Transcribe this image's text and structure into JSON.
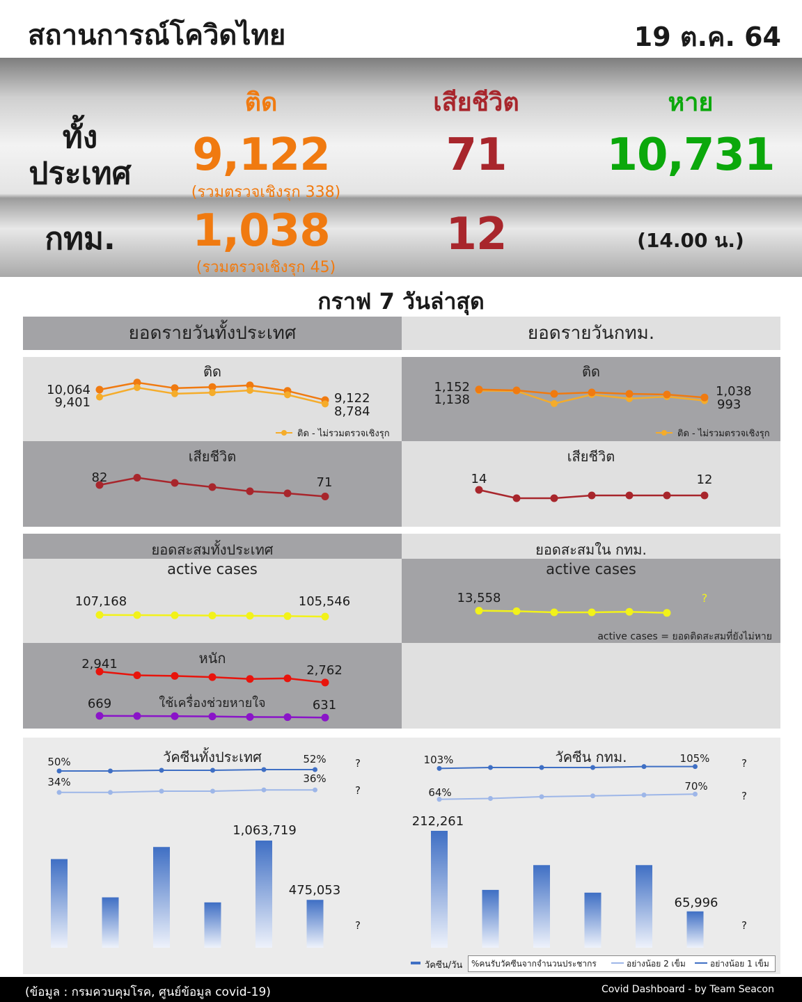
{
  "header": {
    "title": "สถานการณ์โควิดไทย",
    "date": "19 ต.ค. 64"
  },
  "stats": {
    "col_infected": "ติด",
    "col_deaths": "เสียชีวิต",
    "col_recovered": "หาย",
    "row_country": "ทั้ง\nประเทศ",
    "row_bkk": "กทม.",
    "country_infected": "9,122",
    "country_infected_note": "(รวมตรวจเชิงรุก 338)",
    "country_deaths": "71",
    "country_recovered": "10,731",
    "bkk_infected": "1,038",
    "bkk_infected_note": "(รวมตรวจเชิงรุก 45)",
    "bkk_deaths": "12",
    "bkk_time": "(14.00 น.)"
  },
  "section_title": "กราฟ 7 วันล่าสุด",
  "panels": {
    "daily_country": "ยอดรายวันทั้งประเทศ",
    "daily_bkk": "ยอดรายวันกทม.",
    "infected": "ติด",
    "deaths": "เสียชีวิต",
    "legend_no_active": "ติด - ไม่รวมตรวจเชิงรุก",
    "cum_country": "ยอดสะสมทั้งประเทศ",
    "cum_bkk": "ยอดสะสมใน กทม.",
    "active": "active cases",
    "severe": "หนัก",
    "ventilator": "ใช้เครื่องช่วยหายใจ",
    "active_note": "active cases = ยอดติดสะสมที่ยังไม่หาย",
    "vacc_country": "วัคซีนทั้งประเทศ",
    "vacc_bkk": "วัคซีน กทม.",
    "legend_daily": "วัคซีน/วัน",
    "legend_pct": "%คนรับวัคซีนจากจำนวนประชากร",
    "legend_2": "อย่างน้อย 2 เข็ม",
    "legend_1": "อย่างน้อย 1 เข็ม",
    "unknown": "?"
  },
  "footer": {
    "source": "(ข้อมูล : กรมควบคุมโรค, ศูนย์ข้อมูล covid-19)",
    "credit": "Covid Dashboard - by Team Seacon"
  },
  "colors": {
    "orange": "#f07a10",
    "red_dark": "#a8262c",
    "green": "#0ba80b",
    "yellow": "#f2f21a",
    "red": "#e8140c",
    "purple": "#8a14c8",
    "blue": "#3f6fc4",
    "blue_light": "#9db6e8"
  },
  "chart_data": [
    {
      "type": "line",
      "id": "country_infected",
      "series": [
        {
          "name": "ติด",
          "values": [
            10064,
            10700,
            10200,
            10300,
            10450,
            9950,
            9122
          ]
        },
        {
          "name": "ติด - ไม่รวมตรวจเชิงรุก",
          "values": [
            9401,
            10250,
            9700,
            9800,
            10000,
            9600,
            8784
          ]
        }
      ],
      "labels": {
        "first": [
          "10,064",
          "9,401"
        ],
        "last": [
          "9,122",
          "8,784"
        ]
      }
    },
    {
      "type": "line",
      "id": "bkk_infected",
      "series": [
        {
          "name": "ติด",
          "values": [
            1152,
            1140,
            1090,
            1110,
            1090,
            1080,
            1038
          ]
        },
        {
          "name": "ติด - ไม่รวมตรวจเชิงรุก",
          "values": [
            1138,
            1130,
            950,
            1080,
            1020,
            1050,
            993
          ]
        }
      ],
      "labels": {
        "first": [
          "1,152",
          "1,138"
        ],
        "last": [
          "1,038",
          "993"
        ]
      }
    },
    {
      "type": "line",
      "id": "country_deaths",
      "series": [
        {
          "name": "เสียชีวิต",
          "values": [
            82,
            89,
            84,
            80,
            76,
            74,
            71
          ]
        }
      ],
      "labels": {
        "first": [
          "82"
        ],
        "last": [
          "71"
        ]
      }
    },
    {
      "type": "line",
      "id": "bkk_deaths",
      "series": [
        {
          "name": "เสียชีวิต",
          "values": [
            14,
            11,
            11,
            12,
            12,
            12,
            12
          ]
        }
      ],
      "labels": {
        "first": [
          "14"
        ],
        "last": [
          "12"
        ]
      }
    },
    {
      "type": "line",
      "id": "country_active",
      "series": [
        {
          "name": "active cases",
          "values": [
            107168,
            107000,
            106800,
            106600,
            106300,
            106000,
            105546
          ]
        }
      ],
      "labels": {
        "first": [
          "107,168"
        ],
        "last": [
          "105,546"
        ]
      }
    },
    {
      "type": "line",
      "id": "bkk_active",
      "series": [
        {
          "name": "active cases",
          "values": [
            13558,
            13540,
            13500,
            13500,
            13520,
            13480
          ]
        }
      ],
      "labels": {
        "first": [
          "13,558"
        ],
        "last": [
          "?"
        ]
      }
    },
    {
      "type": "line",
      "id": "country_severe",
      "series": [
        {
          "name": "หนัก",
          "values": [
            2941,
            2880,
            2870,
            2850,
            2820,
            2830,
            2762
          ]
        },
        {
          "name": "ใช้เครื่องช่วยหายใจ",
          "values": [
            669,
            665,
            662,
            655,
            645,
            640,
            631
          ]
        }
      ],
      "labels": {
        "first": [
          "2,941",
          "669"
        ],
        "last": [
          "2,762",
          "631"
        ]
      }
    },
    {
      "type": "bar",
      "id": "country_vaccine",
      "values": [
        880000,
        500000,
        1000000,
        450000,
        1063719,
        475053
      ],
      "pct_line": {
        "at_least_1": [
          50,
          50,
          51,
          51,
          52,
          52
        ],
        "at_least_2": [
          34,
          34,
          35,
          35,
          36,
          36
        ]
      },
      "labels": {
        "bar": [
          "1,063,719",
          "475,053"
        ],
        "pct1": [
          "50%",
          "52%"
        ],
        "pct2": [
          "34%",
          "36%"
        ]
      }
    },
    {
      "type": "bar",
      "id": "bkk_vaccine",
      "values": [
        212261,
        105000,
        150000,
        100000,
        150000,
        65996
      ],
      "pct_line": {
        "at_least_1": [
          103,
          104,
          104,
          104,
          105,
          105
        ],
        "at_least_2": [
          64,
          65,
          67,
          68,
          69,
          70
        ]
      },
      "labels": {
        "bar": [
          "212,261",
          "65,996"
        ],
        "pct1": [
          "103%",
          "105%"
        ],
        "pct2": [
          "64%",
          "70%"
        ]
      }
    }
  ]
}
